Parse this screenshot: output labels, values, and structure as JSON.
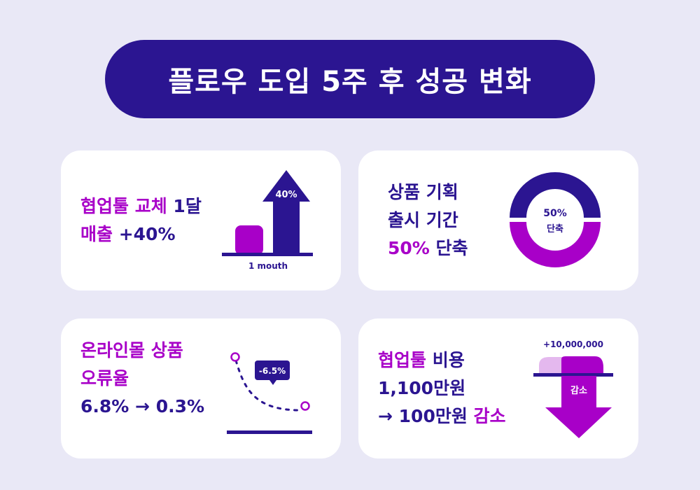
{
  "title": "플로우 도입 5주 후 성공 변화",
  "colors": {
    "navy": "#2b1591",
    "purple": "#a800c8",
    "light_purple": "#e4b8ee",
    "background": "#e9e8f6"
  },
  "cards": [
    {
      "line1_a": "협업툴 교체",
      "line1_b": " 1달",
      "line2_a": "매출",
      "line2_b": " +40%",
      "bar_label": "40%",
      "axis_label": "1 mouth"
    },
    {
      "line1": "상품 기획",
      "line2": "출시 기간",
      "line3_a": "50%",
      "line3_b": " 단축",
      "donut_value": "50%",
      "donut_label": "단축"
    },
    {
      "line1": "온라인몰 상품",
      "line2": "오류율",
      "line3": "6.8% → 0.3%",
      "callout": "-6.5%"
    },
    {
      "line1_a": "협업툴",
      "line1_b": " 비용",
      "line2": "1,100만원",
      "line3_a": "→ 100만원",
      "line3_b": " 감소",
      "top_label": "+10,000,000",
      "arrow_label": "감소"
    }
  ]
}
